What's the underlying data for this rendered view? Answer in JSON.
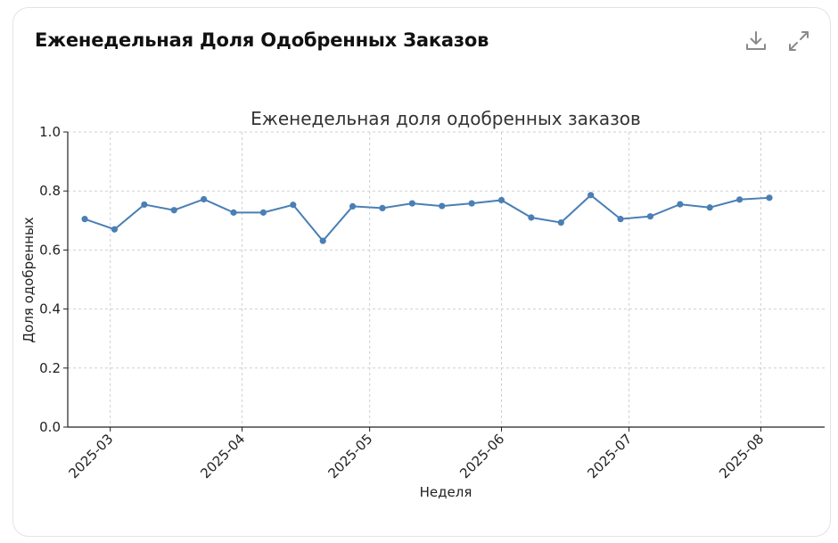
{
  "header": {
    "title": "Еженедельная Доля Одобренных Заказов",
    "download_icon": "download-icon",
    "expand_icon": "expand-icon"
  },
  "colors": {
    "line": "#4a7fb5",
    "grid": "#cfcfcf",
    "axis": "#222222"
  },
  "chart_data": {
    "type": "line",
    "title": "Еженедельная доля одобренных заказов",
    "xlabel": "Неделя",
    "ylabel": "Доля одобренных",
    "ylim": [
      0,
      1.0
    ],
    "yticks": [
      "0.0",
      "0.2",
      "0.4",
      "0.6",
      "0.8",
      "1.0"
    ],
    "xticks": [
      "2025-03",
      "2025-04",
      "2025-05",
      "2025-06",
      "2025-07",
      "2025-08"
    ],
    "xtick_dates": [
      "2025-03-01",
      "2025-04-01",
      "2025-05-01",
      "2025-06-01",
      "2025-07-01",
      "2025-08-01"
    ],
    "x_range": [
      "2025-02-19",
      "2025-08-16"
    ],
    "grid": true,
    "series": [
      {
        "x": [
          "2025-02-23",
          "2025-03-02",
          "2025-03-09",
          "2025-03-16",
          "2025-03-23",
          "2025-03-30",
          "2025-04-06",
          "2025-04-13",
          "2025-04-20",
          "2025-04-27",
          "2025-05-04",
          "2025-05-11",
          "2025-05-18",
          "2025-05-25",
          "2025-06-01",
          "2025-06-08",
          "2025-06-15",
          "2025-06-22",
          "2025-06-29",
          "2025-07-06",
          "2025-07-13",
          "2025-07-20",
          "2025-07-27",
          "2025-08-03"
        ],
        "values": [
          0.705,
          0.67,
          0.754,
          0.735,
          0.772,
          0.727,
          0.727,
          0.753,
          0.631,
          0.748,
          0.742,
          0.758,
          0.749,
          0.758,
          0.769,
          0.71,
          0.693,
          0.786,
          0.705,
          0.714,
          0.755,
          0.744,
          0.771,
          0.777
        ]
      }
    ]
  }
}
